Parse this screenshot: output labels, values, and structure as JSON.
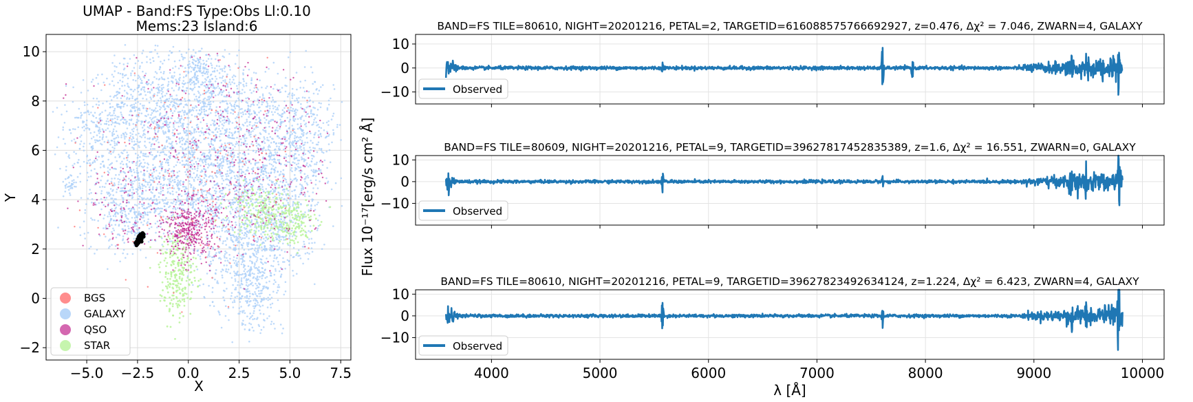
{
  "chart_data": [
    {
      "type": "scatter",
      "title": "UMAP  -  Band:FS Type:Obs Ll:0.10",
      "subtitle": "Mems:23 Island:6",
      "xlabel": "X",
      "ylabel": "Y",
      "xlim": [
        -7.0,
        8.0
      ],
      "ylim": [
        -2.5,
        10.7
      ],
      "xticks": [
        -5.0,
        -2.5,
        0.0,
        2.5,
        5.0,
        7.5
      ],
      "xtick_labels": [
        "−5.0",
        "−2.5",
        "0.0",
        "2.5",
        "5.0",
        "7.5"
      ],
      "yticks": [
        -2,
        0,
        2,
        4,
        6,
        8,
        10
      ],
      "ytick_labels": [
        "−2",
        "0",
        "2",
        "4",
        "6",
        "8",
        "10"
      ],
      "grid": true,
      "legend_position": "lower-left",
      "legend": [
        {
          "name": "BGS",
          "color": "#ff7070"
        },
        {
          "name": "GALAXY",
          "color": "#a8cdf8"
        },
        {
          "name": "QSO",
          "color": "#c2268f"
        },
        {
          "name": "STAR",
          "color": "#b8f39a"
        }
      ],
      "highlight_color": "#000000",
      "highlight_points": [
        [
          -2.25,
          2.65
        ],
        [
          -2.35,
          2.45
        ],
        [
          -2.45,
          2.3
        ],
        [
          -2.5,
          2.2
        ],
        [
          -2.3,
          2.55
        ],
        [
          -2.4,
          2.4
        ],
        [
          -2.2,
          2.6
        ],
        [
          -2.55,
          2.15
        ],
        [
          -2.35,
          2.35
        ],
        [
          -2.45,
          2.5
        ],
        [
          -2.3,
          2.4
        ],
        [
          -2.5,
          2.3
        ],
        [
          -2.4,
          2.55
        ],
        [
          -2.25,
          2.5
        ],
        [
          -2.6,
          2.25
        ],
        [
          -2.35,
          2.6
        ],
        [
          -2.45,
          2.25
        ],
        [
          -2.3,
          2.3
        ],
        [
          -2.4,
          2.5
        ],
        [
          -2.5,
          2.4
        ],
        [
          -2.2,
          2.5
        ],
        [
          -2.55,
          2.3
        ],
        [
          -2.35,
          2.5
        ]
      ]
    },
    {
      "type": "line",
      "title": "BAND=FS TILE=80610, NIGHT=20201216, PETAL=2, TARGETID=616088575766692927, z=0.476, Δχ² = 7.046, ZWARN=4, GALAXY",
      "series": [
        {
          "name": "Observed",
          "color": "#1f77b4"
        }
      ],
      "xlim": [
        3300,
        10200
      ],
      "ylim": [
        -15,
        14
      ],
      "yticks": [
        -10,
        0,
        10
      ],
      "ytick_labels": [
        "−10",
        "0",
        "10"
      ],
      "features": [
        {
          "x": 3600,
          "amp": 4
        },
        {
          "x": 5577,
          "amp": 3
        },
        {
          "x": 7605,
          "amp": 13
        },
        {
          "x": 7880,
          "amp": 6
        },
        {
          "x": 9350,
          "amp": 5
        },
        {
          "x": 9500,
          "amp": 6
        },
        {
          "x": 9780,
          "amp": 14
        }
      ]
    },
    {
      "type": "line",
      "title": "BAND=FS TILE=80609, NIGHT=20201216, PETAL=9, TARGETID=39627817452835389, z=1.6, Δχ² = 16.551, ZWARN=0, GALAXY",
      "series": [
        {
          "name": "Observed",
          "color": "#1f77b4"
        }
      ],
      "xlim": [
        3300,
        10200
      ],
      "ylim": [
        -20,
        12
      ],
      "yticks": [
        -10,
        0,
        10
      ],
      "ytick_labels": [
        "−10",
        "0",
        "10"
      ],
      "features": [
        {
          "x": 3600,
          "amp": 5
        },
        {
          "x": 5577,
          "amp": 5
        },
        {
          "x": 7605,
          "amp": 3
        },
        {
          "x": 9350,
          "amp": 7
        },
        {
          "x": 9480,
          "amp": 10
        },
        {
          "x": 9780,
          "amp": 17
        }
      ]
    },
    {
      "type": "line",
      "title": "BAND=FS TILE=80610, NIGHT=20201216, PETAL=9, TARGETID=39627823492634124, z=1.224, Δχ² = 6.423, ZWARN=4, GALAXY",
      "series": [
        {
          "name": "Observed",
          "color": "#1f77b4"
        }
      ],
      "xlim": [
        3300,
        10200
      ],
      "ylim": [
        -20,
        12
      ],
      "yticks": [
        -10,
        0,
        10
      ],
      "ytick_labels": [
        "−10",
        "0",
        "10"
      ],
      "xticks": [
        4000,
        5000,
        6000,
        7000,
        8000,
        9000,
        10000
      ],
      "xtick_labels": [
        "4000",
        "5000",
        "6000",
        "7000",
        "8000",
        "9000",
        "10000"
      ],
      "xlabel": "λ [Å]",
      "ylabel": "Flux 10⁻¹⁷[erg/s cm² Å]",
      "features": [
        {
          "x": 3600,
          "amp": 7
        },
        {
          "x": 5577,
          "amp": 9
        },
        {
          "x": 7605,
          "amp": 5
        },
        {
          "x": 9350,
          "amp": 7
        },
        {
          "x": 9480,
          "amp": 8
        },
        {
          "x": 9780,
          "amp": 19
        }
      ]
    }
  ]
}
